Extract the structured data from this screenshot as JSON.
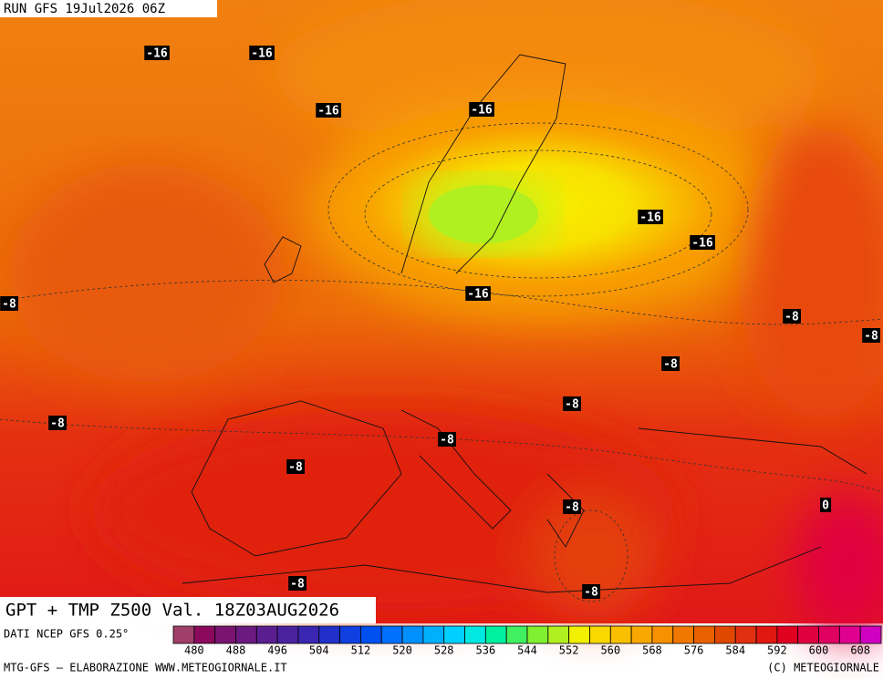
{
  "header": {
    "run": "RUN GFS 19Jul2026 06Z"
  },
  "map": {
    "title": "GPT + TMP Z500 Val. 18Z03AUG2026",
    "contour_labels": [
      "-16",
      "-16",
      "-16",
      "-16",
      "-16",
      "-16",
      "-16",
      "-8",
      "-8",
      "-8",
      "-8",
      "-8",
      "-8",
      "-8",
      "-8",
      "-8",
      "0",
      "-8",
      "-8"
    ]
  },
  "legend": {
    "lim": [
      476,
      612
    ],
    "colors": [
      "#a0406a",
      "#8b0a5e",
      "#7a1470",
      "#6a1a80",
      "#5a1e90",
      "#4a22a0",
      "#3a26b0",
      "#2030c8",
      "#1040e0",
      "#0050f0",
      "#0070ff",
      "#0090ff",
      "#00b0ff",
      "#00d0ff",
      "#00e8e0",
      "#00f0a0",
      "#40f060",
      "#80f030",
      "#b0f020",
      "#f0f000",
      "#f8d800",
      "#f8c000",
      "#f8a800",
      "#f89000",
      "#f07800",
      "#e86000",
      "#e04800",
      "#e03010",
      "#e01810",
      "#e00020",
      "#e00040",
      "#e00060",
      "#e00090",
      "#d000c0"
    ],
    "ticks": [
      480,
      488,
      496,
      504,
      512,
      520,
      528,
      536,
      544,
      552,
      560,
      568,
      576,
      584,
      592,
      600,
      608
    ]
  },
  "footer": {
    "source": "DATI NCEP GFS 0.25°",
    "credit_left": "MTG-GFS – ELABORAZIONE WWW.METEOGIORNALE.IT",
    "credit_right": "(C) METEOGIORNALE"
  }
}
